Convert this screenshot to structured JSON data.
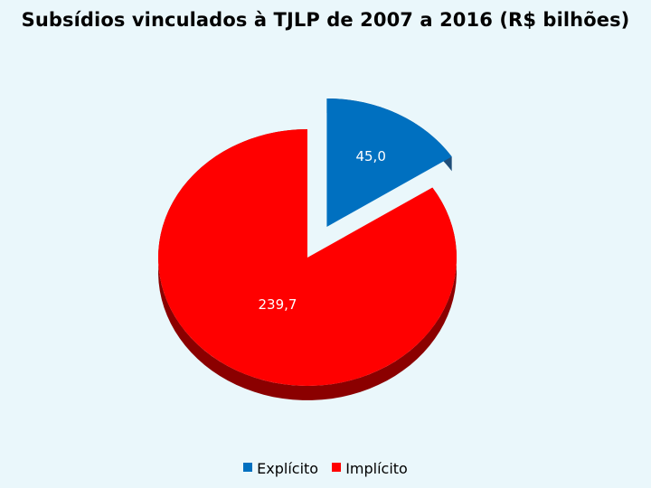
{
  "chart_data": {
    "type": "pie",
    "title": "Subsídios vinculados à TJLP de 2007 a 2016 (R$ bilhões)",
    "slices": [
      {
        "name": "Explícito",
        "value": 45.0,
        "label": "45,0",
        "color": "#0070c0",
        "exploded": true
      },
      {
        "name": "Implícito",
        "value": 239.7,
        "label": "239,7",
        "color": "#ff0000",
        "exploded": false
      }
    ],
    "legend": {
      "placement": "bottom"
    },
    "style": "3d"
  },
  "colors": {
    "background": "#eaf7fb",
    "explicito_side": "#1f4e79",
    "implicito_side": "#8b0000"
  }
}
